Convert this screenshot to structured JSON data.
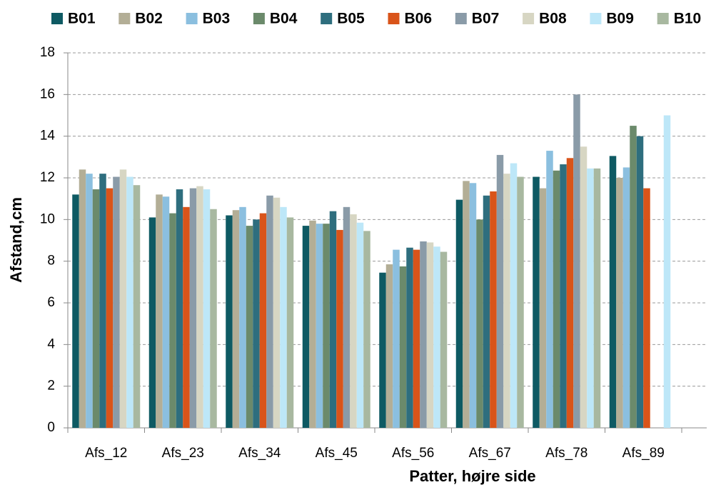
{
  "chart_data": {
    "type": "bar",
    "x_label": "Patter, højre side",
    "y_label": "Afstand,cm",
    "categories": [
      "Afs_12",
      "Afs_23",
      "Afs_34",
      "Afs_45",
      "Afs_56",
      "Afs_67",
      "Afs_78",
      "Afs_89"
    ],
    "series": [
      {
        "name": "B01",
        "color": "#0e5a63",
        "values": [
          11.2,
          10.1,
          10.2,
          9.7,
          7.45,
          10.95,
          12.05,
          13.05
        ]
      },
      {
        "name": "B02",
        "color": "#b3ae96",
        "values": [
          12.4,
          11.2,
          10.45,
          9.95,
          7.85,
          11.85,
          11.5,
          12.0
        ]
      },
      {
        "name": "B03",
        "color": "#8bbfdf",
        "values": [
          12.2,
          11.1,
          10.6,
          9.8,
          8.55,
          11.75,
          13.3,
          12.5
        ]
      },
      {
        "name": "B04",
        "color": "#6b8a6b",
        "values": [
          11.45,
          10.3,
          9.7,
          9.8,
          7.75,
          10.0,
          12.35,
          14.5
        ]
      },
      {
        "name": "B05",
        "color": "#2e6e7e",
        "values": [
          12.2,
          11.45,
          10.0,
          10.4,
          8.65,
          11.15,
          12.65,
          14.0
        ]
      },
      {
        "name": "B06",
        "color": "#d9541a",
        "values": [
          11.5,
          10.6,
          10.3,
          9.5,
          8.55,
          11.35,
          12.95,
          11.5
        ]
      },
      {
        "name": "B07",
        "color": "#8a9ba8",
        "values": [
          12.05,
          11.5,
          11.15,
          10.6,
          8.95,
          13.1,
          16.0,
          null
        ]
      },
      {
        "name": "B08",
        "color": "#d7d6c3",
        "values": [
          12.4,
          11.6,
          11.05,
          10.25,
          8.9,
          12.2,
          13.5,
          null
        ]
      },
      {
        "name": "B09",
        "color": "#bde7f8",
        "values": [
          12.05,
          11.45,
          10.6,
          9.85,
          8.7,
          12.7,
          12.45,
          15.0
        ]
      },
      {
        "name": "B10",
        "color": "#a8b8a0",
        "values": [
          11.65,
          10.5,
          10.1,
          9.45,
          8.45,
          12.05,
          12.45,
          null
        ]
      }
    ],
    "ylim": [
      0,
      18
    ],
    "yticks": [
      0,
      2,
      4,
      6,
      8,
      10,
      12,
      14,
      16,
      18
    ],
    "grid": true
  }
}
